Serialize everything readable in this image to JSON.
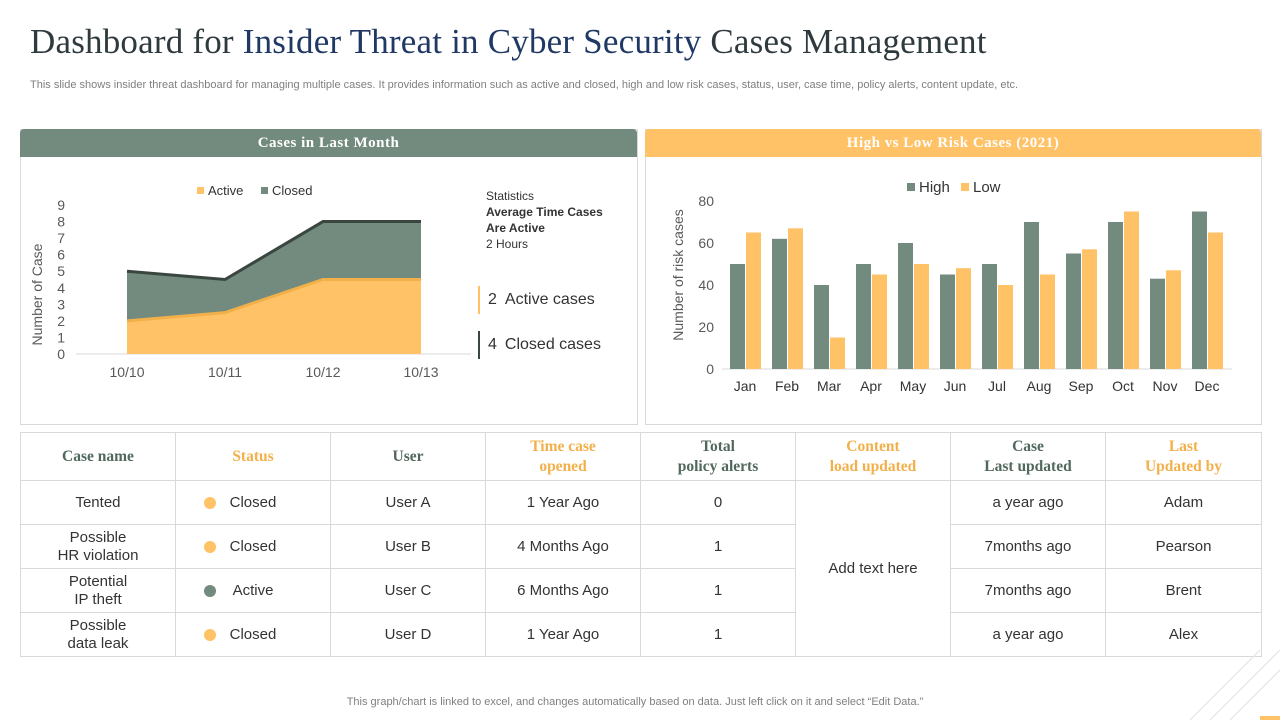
{
  "page": {
    "title_part1": "Dashboard for ",
    "title_highlight": "Insider Threat in Cyber Security",
    "title_part2": " Cases Management",
    "subtitle": "This slide shows insider threat dashboard for managing multiple cases. It provides information such as active and closed, high and low risk cases, status, user, case time, policy alerts, content update, etc.",
    "footer": "This graph/chart is linked to excel,  and changes automatically based on data. Just left click on it and select “Edit Data.”"
  },
  "colors": {
    "gray": "#728b7e",
    "amber": "#ffc266",
    "amber_dark": "#f2b04a",
    "dark_line": "#3a4640"
  },
  "left_panel": {
    "header": "Cases in Last Month",
    "stats_label": "Statistics",
    "stats_bold_line1": "Average Time Cases",
    "stats_bold_line2": "Are Active",
    "stats_value": "2 Hours",
    "kpis": [
      {
        "value": "2",
        "label": "Active cases",
        "color": "#ffc266"
      },
      {
        "value": "4",
        "label": "Closed cases",
        "color": "#3a4640"
      }
    ]
  },
  "right_panel": {
    "header": "High vs Low Risk Cases (2021)"
  },
  "chart_data": [
    {
      "type": "area",
      "title": "Cases in Last Month",
      "categories": [
        "10/10",
        "10/11",
        "10/12",
        "10/13"
      ],
      "series": [
        {
          "name": "Active",
          "values": [
            2,
            2.5,
            4.5,
            4.5
          ]
        },
        {
          "name": "Closed",
          "values": [
            5,
            4.5,
            8,
            8
          ]
        }
      ],
      "ylabel": "Number of Case",
      "yticks": [
        0,
        1,
        2,
        3,
        4,
        5,
        6,
        7,
        8,
        9
      ],
      "ylim": [
        0,
        9
      ],
      "legend": "top"
    },
    {
      "type": "bar",
      "title": "High vs Low Risk Cases (2021)",
      "categories": [
        "Jan",
        "Feb",
        "Mar",
        "Apr",
        "May",
        "Jun",
        "Jul",
        "Aug",
        "Sep",
        "Oct",
        "Nov",
        "Dec"
      ],
      "series": [
        {
          "name": "High",
          "values": [
            50,
            62,
            40,
            50,
            60,
            45,
            50,
            70,
            55,
            70,
            43,
            75
          ]
        },
        {
          "name": "Low",
          "values": [
            65,
            67,
            15,
            45,
            50,
            48,
            40,
            45,
            57,
            75,
            47,
            65
          ]
        }
      ],
      "ylabel": "Number of risk cases",
      "yticks": [
        0,
        20,
        40,
        60,
        80
      ],
      "ylim": [
        0,
        85
      ],
      "legend": "top"
    }
  ],
  "table": {
    "headers": [
      "Case name",
      "Status",
      "User",
      "Time case opened",
      "Total policy alerts",
      "Content load updated",
      "Case Last updated",
      "Last Updated by"
    ],
    "header_lines": [
      [
        "Case name"
      ],
      [
        "Status"
      ],
      [
        "User"
      ],
      [
        "Time case",
        "opened"
      ],
      [
        "Total",
        "policy alerts"
      ],
      [
        "Content",
        "load updated"
      ],
      [
        "Case",
        "Last updated"
      ],
      [
        "Last",
        "Updated by"
      ]
    ],
    "content_note": "Add text here",
    "rows": [
      {
        "case_lines": [
          "Tented"
        ],
        "status": "Closed",
        "status_color": "#ffc266",
        "user": "User A",
        "opened": "1 Year Ago",
        "alerts": "0",
        "last_updated": "a year ago",
        "updated_by": "Adam"
      },
      {
        "case_lines": [
          "Possible",
          "HR violation"
        ],
        "status": "Closed",
        "status_color": "#ffc266",
        "user": "User B",
        "opened": "4 Months Ago",
        "alerts": "1",
        "last_updated": "7months ago",
        "updated_by": "Pearson"
      },
      {
        "case_lines": [
          "Potential",
          "IP theft"
        ],
        "status": "Active",
        "status_color": "#728b7e",
        "user": "User C",
        "opened": "6 Months Ago",
        "alerts": "1",
        "last_updated": "7months ago",
        "updated_by": "Brent"
      },
      {
        "case_lines": [
          "Possible",
          "data leak"
        ],
        "status": "Closed",
        "status_color": "#ffc266",
        "user": "User D",
        "opened": "1 Year Ago",
        "alerts": "1",
        "last_updated": "a year ago",
        "updated_by": "Alex"
      }
    ]
  }
}
